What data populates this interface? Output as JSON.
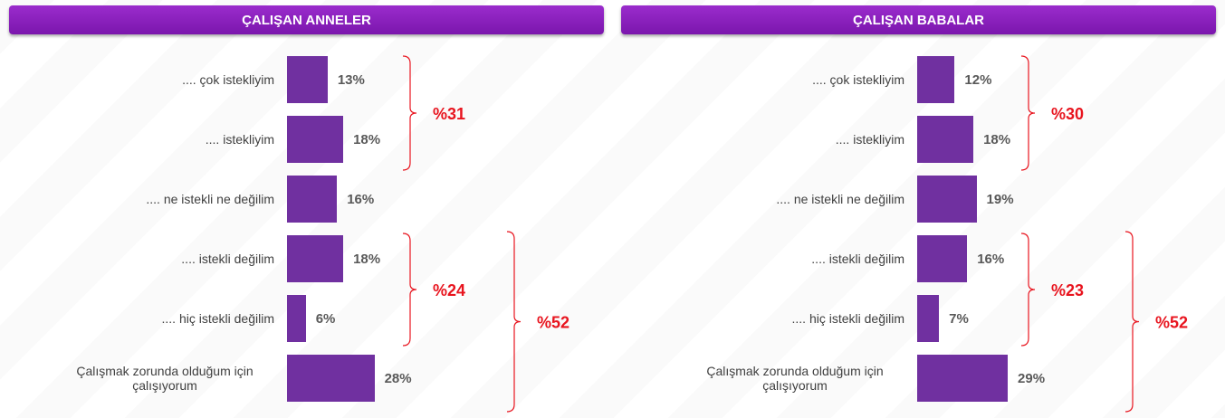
{
  "chart_data": [
    {
      "type": "bar",
      "title": "ÇALIŞAN ANNELER",
      "categories": [
        ".... çok istekliyim",
        ".... istekliyim",
        ".... ne istekli ne değilim",
        ".... istekli değilim",
        ".... hiç istekli değilim",
        "Çalışmak zorunda olduğum için çalışıyorum"
      ],
      "values": [
        13,
        18,
        16,
        18,
        6,
        28
      ],
      "value_labels": [
        "13%",
        "18%",
        "16%",
        "18%",
        "6%",
        "28%"
      ],
      "color": "#7030a0",
      "annotations": [
        "%31",
        "%24",
        "%52"
      ]
    },
    {
      "type": "bar",
      "title": "ÇALIŞAN BABALAR",
      "categories": [
        ".... çok istekliyim",
        ".... istekliyim",
        ".... ne istekli ne değilim",
        ".... istekli değilim",
        ".... hiç istekli değilim",
        "Çalışmak zorunda olduğum için çalışıyorum"
      ],
      "values": [
        12,
        18,
        19,
        16,
        7,
        29
      ],
      "value_labels": [
        "12%",
        "18%",
        "19%",
        "16%",
        "7%",
        "29%"
      ],
      "color": "#7030a0",
      "annotations": [
        "%30",
        "%23",
        "%52"
      ]
    }
  ]
}
